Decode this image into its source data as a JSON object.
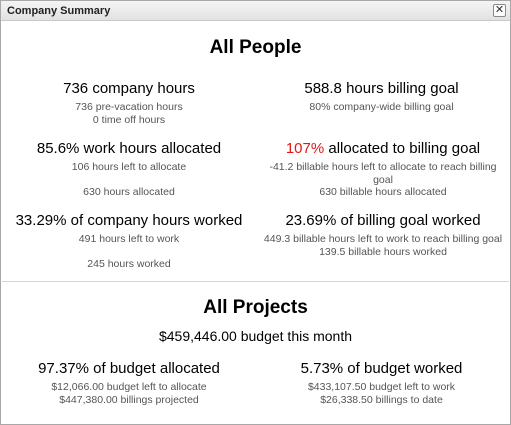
{
  "window": {
    "title": "Company Summary",
    "close_glyph": "✕"
  },
  "people": {
    "heading": "All People",
    "company_hours": {
      "headline": "736 company hours",
      "line1": "736 pre-vacation hours",
      "line2": "0 time off hours"
    },
    "billing_goal": {
      "headline": "588.8 hours billing goal",
      "line1": "80% company-wide billing goal"
    },
    "work_allocated": {
      "headline": "85.6% work hours allocated",
      "line1": "106 hours left to allocate",
      "line2": "630 hours allocated"
    },
    "billing_allocated": {
      "headline_red": "107%",
      "headline_rest": " allocated to billing goal",
      "line1": "-41.2 billable hours left to allocate to reach billing goal",
      "line2": "630 billable hours allocated"
    },
    "company_worked": {
      "headline": "33.29% of company hours worked",
      "line1": "491 hours left to work",
      "line2": "245 hours worked"
    },
    "billing_worked": {
      "headline": "23.69% of billing goal worked",
      "line1": "449.3 billable hours left to work to reach billing goal",
      "line2": "139.5 billable hours worked"
    }
  },
  "projects": {
    "heading": "All Projects",
    "budget": "$459,446.00 budget this month",
    "allocated": {
      "headline": "97.37% of budget allocated",
      "line1": "$12,066.00 budget left to allocate",
      "line2": "$447,380.00 billings projected"
    },
    "worked": {
      "headline": "5.73% of budget worked",
      "line1": "$433,107.50 budget left to work",
      "line2": "$26,338.50 billings to date"
    }
  },
  "colors": {
    "accent_red": "#e01818",
    "title_bar": "#e8e8e8"
  }
}
